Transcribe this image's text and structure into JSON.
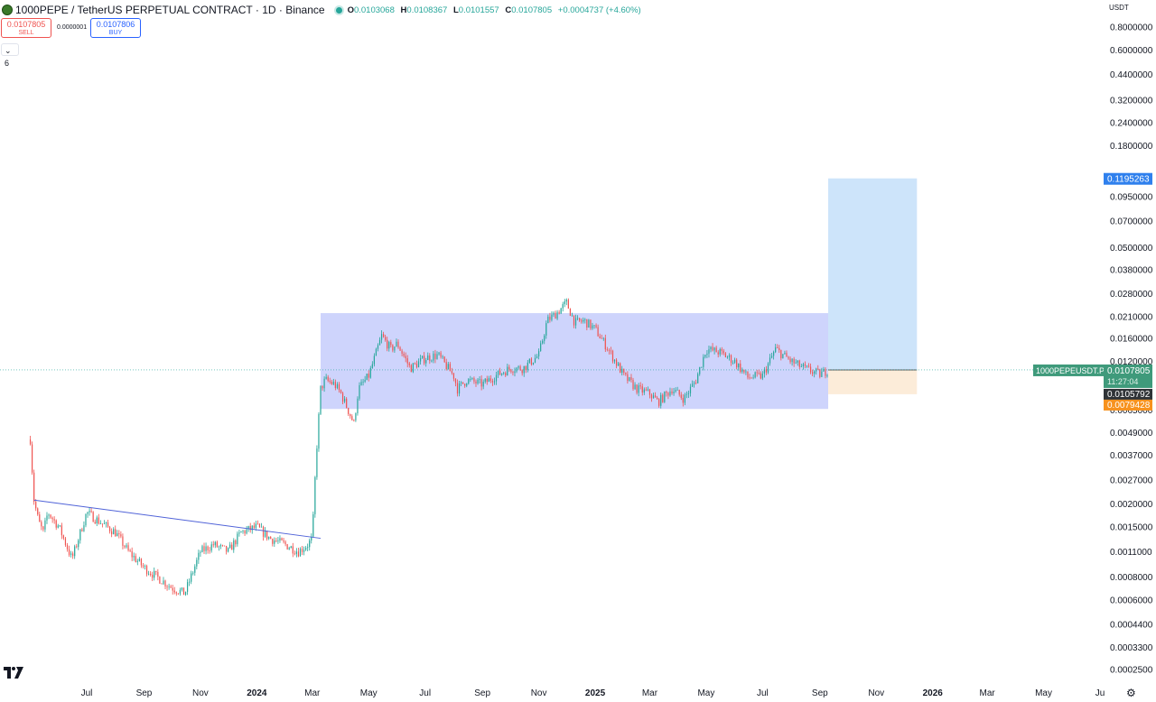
{
  "header": {
    "title": "1000PEPE / TetherUS PERPETUAL CONTRACT · 1D · Binance",
    "ohlc": {
      "o_label": "O",
      "o": "0.0103068",
      "h_label": "H",
      "h": "0.0108367",
      "l_label": "L",
      "l": "0.0101557",
      "c_label": "C",
      "c": "0.0107805",
      "change": "+0.0004737 (+4.60%)"
    }
  },
  "trade": {
    "sell_price": "0.0107805",
    "sell_label": "SELL",
    "spread": "0.0000001",
    "buy_price": "0.0107806",
    "buy_label": "BUY"
  },
  "indicator_count": "6",
  "currency": "USDT",
  "colors": {
    "up": "#26a69a",
    "down": "#ef5350",
    "range": "#b3bdfa",
    "target": "#90c4f5",
    "stop": "#fbe7cf",
    "trendline": "#5063d8"
  },
  "chart_data": {
    "type": "line",
    "scale": "log",
    "x": [
      "2023-05-01",
      "2023-05-05",
      "2023-05-10",
      "2023-05-15",
      "2023-05-20",
      "2023-06-01",
      "2023-06-15",
      "2023-07-01",
      "2023-07-15",
      "2023-08-01",
      "2023-08-15",
      "2023-09-01",
      "2023-09-15",
      "2023-10-01",
      "2023-10-15",
      "2023-11-01",
      "2023-11-15",
      "2023-12-01",
      "2023-12-15",
      "2024-01-01",
      "2024-01-15",
      "2024-02-01",
      "2024-02-15",
      "2024-02-25",
      "2024-03-01",
      "2024-03-05",
      "2024-03-10",
      "2024-03-15",
      "2024-03-25",
      "2024-04-01",
      "2024-04-15",
      "2024-04-20",
      "2024-05-01",
      "2024-05-15",
      "2024-05-25",
      "2024-06-01",
      "2024-06-15",
      "2024-07-01",
      "2024-07-15",
      "2024-08-01",
      "2024-08-05",
      "2024-08-15",
      "2024-09-01",
      "2024-09-15",
      "2024-10-01",
      "2024-10-15",
      "2024-11-01",
      "2024-11-10",
      "2024-11-20",
      "2024-12-01",
      "2024-12-10",
      "2024-12-20",
      "2025-01-01",
      "2025-01-15",
      "2025-02-01",
      "2025-02-15",
      "2025-03-01",
      "2025-03-10",
      "2025-03-25",
      "2025-04-07",
      "2025-04-20",
      "2025-05-01",
      "2025-05-15",
      "2025-06-01",
      "2025-06-15",
      "2025-07-01",
      "2025-07-15",
      "2025-08-01",
      "2025-08-15",
      "2025-09-01",
      "2025-09-10"
    ],
    "close": [
      0.0045,
      0.0021,
      0.0016,
      0.0014,
      0.0018,
      0.0015,
      0.001,
      0.0018,
      0.0016,
      0.0014,
      0.0011,
      0.0009,
      0.0008,
      0.0007,
      0.00065,
      0.0011,
      0.0012,
      0.0011,
      0.0014,
      0.0015,
      0.0013,
      0.0012,
      0.0011,
      0.0012,
      0.0013,
      0.0035,
      0.0085,
      0.0095,
      0.009,
      0.008,
      0.0055,
      0.0085,
      0.01,
      0.0165,
      0.014,
      0.015,
      0.011,
      0.0125,
      0.013,
      0.01,
      0.0085,
      0.0095,
      0.009,
      0.01,
      0.011,
      0.011,
      0.013,
      0.02,
      0.022,
      0.025,
      0.0195,
      0.02,
      0.018,
      0.014,
      0.01,
      0.0085,
      0.008,
      0.0072,
      0.0085,
      0.0075,
      0.0095,
      0.014,
      0.0135,
      0.012,
      0.0098,
      0.01,
      0.014,
      0.012,
      0.011,
      0.0102,
      0.0107805
    ],
    "y_ticks": [
      "0.8000000",
      "0.6000000",
      "0.4400000",
      "0.3200000",
      "0.2400000",
      "0.1800000",
      "0.1200000",
      "0.0950000",
      "0.0700000",
      "0.0500000",
      "0.0380000",
      "0.0280000",
      "0.0210000",
      "0.0160000",
      "0.0120000",
      "0.0065000",
      "0.0049000",
      "0.0037000",
      "0.0027000",
      "0.0020000",
      "0.0015000",
      "0.0011000",
      "0.0008000",
      "0.0006000",
      "0.0004400",
      "0.0003300",
      "0.0002500"
    ],
    "y_tick_values": [
      0.8,
      0.6,
      0.44,
      0.32,
      0.24,
      0.18,
      0.12,
      0.095,
      0.07,
      0.05,
      0.038,
      0.028,
      0.021,
      0.016,
      0.012,
      0.0065,
      0.0049,
      0.0037,
      0.0027,
      0.002,
      0.0015,
      0.0011,
      0.0008,
      0.0006,
      0.00044,
      0.00033,
      0.00025
    ],
    "x_ticks": [
      "Jul",
      "Sep",
      "Nov",
      "2024",
      "Mar",
      "May",
      "Jul",
      "Sep",
      "Nov",
      "2025",
      "Mar",
      "May",
      "Jul",
      "Sep",
      "Nov",
      "2026",
      "Mar",
      "May",
      "Ju"
    ],
    "x_tick_dates": [
      "2023-07-01",
      "2023-09-01",
      "2023-11-01",
      "2024-01-01",
      "2024-03-01",
      "2024-05-01",
      "2024-07-01",
      "2024-09-01",
      "2024-11-01",
      "2025-01-01",
      "2025-03-01",
      "2025-05-01",
      "2025-07-01",
      "2025-09-01",
      "2025-11-01",
      "2026-01-01",
      "2026-03-01",
      "2026-05-01",
      "2026-07-01"
    ],
    "range_box": {
      "start": "2024-03-10",
      "end": "2025-09-10",
      "top": 0.022,
      "bottom": 0.0066
    },
    "trendline": {
      "start": "2023-05-05",
      "start_value": 0.0021,
      "end": "2024-03-10",
      "end_value": 0.0013
    },
    "position": {
      "start": "2025-09-10",
      "end": "2025-12-15",
      "entry": 0.0107805,
      "target": 0.1195263,
      "stop": 0.0079428
    },
    "price_labels": {
      "symbol": "1000PEPEUSDT.P",
      "last": "0.0107805",
      "countdown": "11:27:04",
      "level_dark": "0.0105792",
      "stop": "0.0079428",
      "target": "0.1195263"
    }
  }
}
